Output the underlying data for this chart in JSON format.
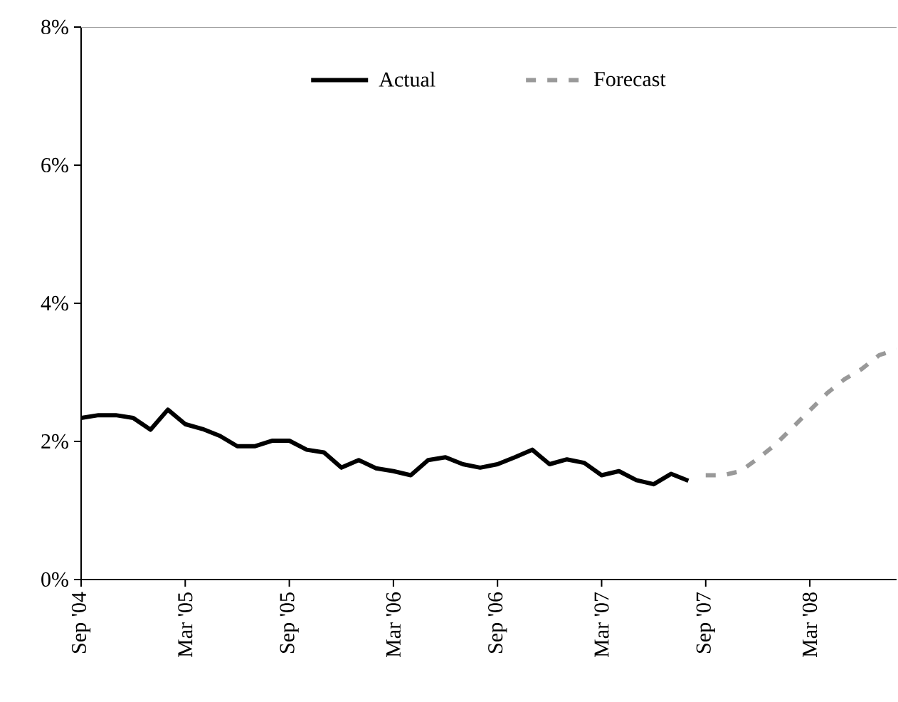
{
  "chart_data": {
    "type": "line",
    "legend": "top",
    "grid": false,
    "marker": "none",
    "xlim": [
      "2004-09",
      "2008-08"
    ],
    "xticks": [
      {
        "value": "2004-09",
        "label": "Sep '04"
      },
      {
        "value": "2005-03",
        "label": "Mar '05"
      },
      {
        "value": "2005-09",
        "label": "Sep '05"
      },
      {
        "value": "2006-03",
        "label": "Mar '06"
      },
      {
        "value": "2006-09",
        "label": "Sep '06"
      },
      {
        "value": "2007-03",
        "label": "Mar '07"
      },
      {
        "value": "2007-09",
        "label": "Sep '07"
      },
      {
        "value": "2008-03",
        "label": "Mar '08"
      }
    ],
    "ylim": [
      0,
      8
    ],
    "yticks": [
      {
        "value": 0,
        "label": "0%"
      },
      {
        "value": 2,
        "label": "2%"
      },
      {
        "value": 4,
        "label": "4%"
      },
      {
        "value": 6,
        "label": "6%"
      },
      {
        "value": 8,
        "label": "8%"
      }
    ],
    "series": [
      {
        "name": "Actual",
        "color": "#000000",
        "line_style": "solid",
        "x": [
          "2004-09",
          "2004-10",
          "2004-11",
          "2004-12",
          "2005-01",
          "2005-02",
          "2005-03",
          "2005-04",
          "2005-05",
          "2005-06",
          "2005-07",
          "2005-08",
          "2005-09",
          "2005-10",
          "2005-11",
          "2005-12",
          "2006-01",
          "2006-02",
          "2006-03",
          "2006-04",
          "2006-05",
          "2006-06",
          "2006-07",
          "2006-08",
          "2006-09",
          "2006-10",
          "2006-11",
          "2006-12",
          "2007-01",
          "2007-02",
          "2007-03",
          "2007-04",
          "2007-05",
          "2007-06",
          "2007-07",
          "2007-08"
        ],
        "values": [
          2.34,
          2.38,
          2.38,
          2.34,
          2.17,
          2.46,
          2.25,
          2.18,
          2.08,
          1.93,
          1.93,
          2.01,
          2.01,
          1.88,
          1.84,
          1.62,
          1.73,
          1.61,
          1.57,
          1.51,
          1.73,
          1.77,
          1.67,
          1.62,
          1.67,
          1.77,
          1.88,
          1.67,
          1.74,
          1.69,
          1.51,
          1.57,
          1.44,
          1.38,
          1.53,
          1.43
        ]
      },
      {
        "name": "Forecast",
        "color": "#999999",
        "line_style": "dashed",
        "x": [
          "2007-09",
          "2007-10",
          "2007-11",
          "2007-12",
          "2008-01",
          "2008-02",
          "2008-03",
          "2008-04",
          "2008-05",
          "2008-06",
          "2008-07",
          "2008-08"
        ],
        "values": [
          1.51,
          1.51,
          1.57,
          1.75,
          1.95,
          2.2,
          2.45,
          2.7,
          2.9,
          3.05,
          3.25,
          3.33
        ]
      }
    ]
  }
}
